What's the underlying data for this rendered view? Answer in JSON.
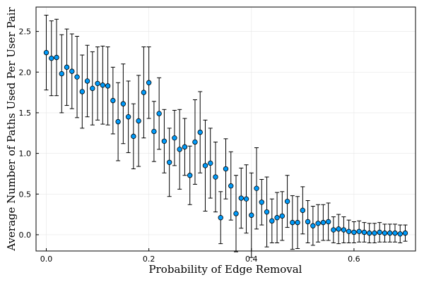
{
  "chart_data": {
    "type": "scatter",
    "xlabel": "Probability of Edge Removal",
    "ylabel": "Average Number of Paths Used Per User Pair",
    "xlim": [
      -0.02,
      0.72
    ],
    "ylim": [
      -0.2,
      2.8
    ],
    "x_ticks": [
      0.0,
      0.2,
      0.4,
      0.6
    ],
    "x_tick_labels": [
      "0.0",
      "0.2",
      "0.4",
      "0.6"
    ],
    "y_ticks": [
      0.0,
      0.5,
      1.0,
      1.5,
      2.0,
      2.5
    ],
    "y_tick_labels": [
      "0.0",
      "0.5",
      "1.0",
      "1.5",
      "2.0",
      "2.5"
    ],
    "grid": true,
    "legend": false,
    "marker_color": "#009af9",
    "series": [
      {
        "x": [
          0.0,
          0.01,
          0.02,
          0.03,
          0.04,
          0.05,
          0.06,
          0.07,
          0.08,
          0.09,
          0.1,
          0.11,
          0.12,
          0.13,
          0.14,
          0.15,
          0.16,
          0.17,
          0.18,
          0.19,
          0.2,
          0.21,
          0.22,
          0.23,
          0.24,
          0.25,
          0.26,
          0.27,
          0.28,
          0.29,
          0.3,
          0.31,
          0.32,
          0.33,
          0.34,
          0.35,
          0.36,
          0.37,
          0.38,
          0.39,
          0.4,
          0.41,
          0.42,
          0.43,
          0.44,
          0.45,
          0.46,
          0.47,
          0.48,
          0.49,
          0.5,
          0.51,
          0.52,
          0.53,
          0.54,
          0.55,
          0.56,
          0.57,
          0.58,
          0.59,
          0.6,
          0.61,
          0.62,
          0.63,
          0.64,
          0.65,
          0.66,
          0.67,
          0.68,
          0.69,
          0.7
        ],
        "y": [
          2.24,
          2.17,
          2.18,
          1.98,
          2.06,
          2.01,
          1.94,
          1.76,
          1.89,
          1.8,
          1.86,
          1.84,
          1.83,
          1.65,
          1.39,
          1.61,
          1.45,
          1.21,
          1.4,
          1.75,
          1.87,
          1.27,
          1.49,
          1.15,
          0.89,
          1.19,
          1.05,
          1.08,
          0.73,
          1.14,
          1.26,
          0.85,
          0.88,
          0.71,
          0.21,
          0.81,
          0.6,
          0.26,
          0.45,
          0.44,
          0.24,
          0.57,
          0.4,
          0.28,
          0.17,
          0.21,
          0.23,
          0.41,
          0.15,
          0.15,
          0.3,
          0.16,
          0.11,
          0.14,
          0.15,
          0.16,
          0.06,
          0.07,
          0.06,
          0.04,
          0.03,
          0.04,
          0.03,
          0.02,
          0.02,
          0.03,
          0.02,
          0.02,
          0.02,
          0.01,
          0.02
        ],
        "err": [
          0.46,
          0.46,
          0.47,
          0.48,
          0.47,
          0.46,
          0.5,
          0.45,
          0.44,
          0.45,
          0.45,
          0.48,
          0.48,
          0.41,
          0.48,
          0.49,
          0.44,
          0.4,
          0.56,
          0.56,
          0.44,
          0.37,
          0.44,
          0.39,
          0.42,
          0.34,
          0.49,
          0.35,
          0.36,
          0.52,
          0.5,
          0.56,
          0.43,
          0.43,
          0.32,
          0.37,
          0.42,
          0.47,
          0.37,
          0.42,
          0.52,
          0.5,
          0.28,
          0.43,
          0.27,
          0.31,
          0.3,
          0.32,
          0.33,
          0.32,
          0.29,
          0.26,
          0.24,
          0.23,
          0.22,
          0.23,
          0.16,
          0.18,
          0.16,
          0.14,
          0.13,
          0.13,
          0.12,
          0.12,
          0.12,
          0.12,
          0.11,
          0.11,
          0.11,
          0.11,
          0.1
        ]
      }
    ]
  }
}
